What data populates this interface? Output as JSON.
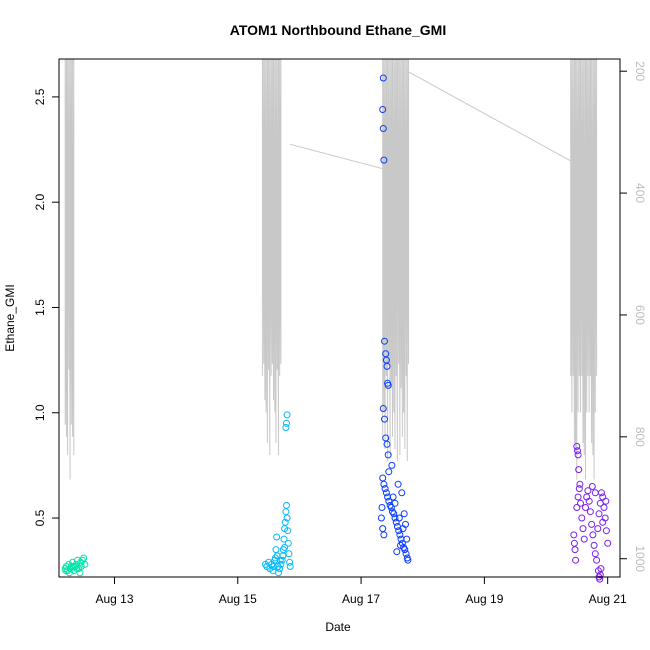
{
  "chart_data": {
    "type": "scatter",
    "title": "ATOM1 Northbound Ethane_GMI",
    "xlabel": "Date",
    "ylabel": "Ethane_GMI",
    "x_ticks": [
      "Aug 13",
      "Aug 15",
      "Aug 17",
      "Aug 19",
      "Aug 21"
    ],
    "y_ticks": [
      "0.5",
      "1.0",
      "1.5",
      "2.0",
      "2.5"
    ],
    "y2_ticks": [
      "200",
      "400",
      "600",
      "800",
      "1000"
    ],
    "y2_reversed": true,
    "xlim_days": [
      12.1,
      21.2
    ],
    "ylim": [
      0.22,
      2.68
    ],
    "y2lim": [
      1030,
      180
    ],
    "grid": false,
    "colors": {
      "axis": "#000000",
      "right_axis": "#bdbdbd",
      "pressure_line": "#c8c8c8"
    },
    "series": [
      {
        "color": "#00e5a8",
        "points": [
          [
            12.2,
            0.26
          ],
          [
            12.22,
            0.27
          ],
          [
            12.24,
            0.25
          ],
          [
            12.26,
            0.28
          ],
          [
            12.28,
            0.26
          ],
          [
            12.3,
            0.27
          ],
          [
            12.32,
            0.29
          ],
          [
            12.34,
            0.25
          ],
          [
            12.36,
            0.27
          ],
          [
            12.38,
            0.28
          ],
          [
            12.4,
            0.3
          ],
          [
            12.42,
            0.26
          ],
          [
            12.44,
            0.24
          ],
          [
            12.46,
            0.27
          ],
          [
            12.48,
            0.3
          ],
          [
            12.5,
            0.31
          ],
          [
            12.52,
            0.28
          ],
          [
            12.21,
            0.25
          ],
          [
            12.27,
            0.24
          ],
          [
            12.33,
            0.27
          ],
          [
            12.39,
            0.26
          ],
          [
            12.45,
            0.29
          ]
        ]
      },
      {
        "color": "#00b9ff",
        "points": [
          [
            15.45,
            0.28
          ],
          [
            15.47,
            0.27
          ],
          [
            15.5,
            0.29
          ],
          [
            15.52,
            0.26
          ],
          [
            15.55,
            0.28
          ],
          [
            15.57,
            0.25
          ],
          [
            15.6,
            0.3
          ],
          [
            15.62,
            0.35
          ],
          [
            15.63,
            0.41
          ],
          [
            15.64,
            0.32
          ],
          [
            15.65,
            0.27
          ],
          [
            15.66,
            0.24
          ],
          [
            15.68,
            0.26
          ],
          [
            15.7,
            0.28
          ],
          [
            15.72,
            0.3
          ],
          [
            15.74,
            0.35
          ],
          [
            15.75,
            0.4
          ],
          [
            15.76,
            0.45
          ],
          [
            15.77,
            0.48
          ],
          [
            15.78,
            0.53
          ],
          [
            15.79,
            0.56
          ],
          [
            15.8,
            0.5
          ],
          [
            15.81,
            0.44
          ],
          [
            15.82,
            0.38
          ],
          [
            15.83,
            0.33
          ],
          [
            15.84,
            0.29
          ],
          [
            15.85,
            0.27
          ],
          [
            15.78,
            0.93
          ],
          [
            15.79,
            0.95
          ],
          [
            15.8,
            0.99
          ],
          [
            15.76,
            0.36
          ],
          [
            15.73,
            0.32
          ],
          [
            15.69,
            0.3
          ],
          [
            15.58,
            0.27
          ],
          [
            15.61,
            0.31
          ]
        ]
      },
      {
        "color": "#0a3cff",
        "points": [
          [
            17.36,
            2.59
          ],
          [
            17.35,
            2.44
          ],
          [
            17.36,
            2.35
          ],
          [
            17.37,
            2.2
          ],
          [
            17.38,
            1.34
          ],
          [
            17.4,
            1.28
          ],
          [
            17.41,
            1.25
          ],
          [
            17.42,
            1.22
          ],
          [
            17.43,
            1.14
          ],
          [
            17.44,
            1.13
          ],
          [
            17.36,
            1.02
          ],
          [
            17.38,
            0.97
          ],
          [
            17.4,
            0.88
          ],
          [
            17.42,
            0.85
          ],
          [
            17.44,
            0.8
          ],
          [
            17.35,
            0.69
          ],
          [
            17.37,
            0.66
          ],
          [
            17.39,
            0.64
          ],
          [
            17.41,
            0.62
          ],
          [
            17.43,
            0.6
          ],
          [
            17.45,
            0.58
          ],
          [
            17.47,
            0.56
          ],
          [
            17.49,
            0.55
          ],
          [
            17.51,
            0.53
          ],
          [
            17.53,
            0.52
          ],
          [
            17.55,
            0.5
          ],
          [
            17.57,
            0.48
          ],
          [
            17.59,
            0.46
          ],
          [
            17.61,
            0.44
          ],
          [
            17.63,
            0.42
          ],
          [
            17.65,
            0.4
          ],
          [
            17.67,
            0.38
          ],
          [
            17.69,
            0.36
          ],
          [
            17.71,
            0.35
          ],
          [
            17.73,
            0.33
          ],
          [
            17.75,
            0.31
          ],
          [
            17.76,
            0.3
          ],
          [
            17.34,
            0.55
          ],
          [
            17.33,
            0.5
          ],
          [
            17.35,
            0.45
          ],
          [
            17.37,
            0.42
          ],
          [
            17.52,
            0.6
          ],
          [
            17.6,
            0.66
          ],
          [
            17.66,
            0.62
          ],
          [
            17.7,
            0.52
          ],
          [
            17.72,
            0.47
          ],
          [
            17.5,
            0.75
          ],
          [
            17.45,
            0.72
          ],
          [
            17.55,
            0.57
          ],
          [
            17.62,
            0.5
          ],
          [
            17.68,
            0.45
          ],
          [
            17.74,
            0.4
          ],
          [
            17.58,
            0.34
          ],
          [
            17.64,
            0.37
          ]
        ]
      },
      {
        "color": "#7a1ff0",
        "points": [
          [
            20.45,
            0.42
          ],
          [
            20.46,
            0.38
          ],
          [
            20.47,
            0.35
          ],
          [
            20.48,
            0.3
          ],
          [
            20.5,
            0.55
          ],
          [
            20.52,
            0.6
          ],
          [
            20.54,
            0.64
          ],
          [
            20.56,
            0.57
          ],
          [
            20.58,
            0.5
          ],
          [
            20.6,
            0.45
          ],
          [
            20.62,
            0.4
          ],
          [
            20.64,
            0.55
          ],
          [
            20.66,
            0.6
          ],
          [
            20.68,
            0.63
          ],
          [
            20.7,
            0.58
          ],
          [
            20.72,
            0.53
          ],
          [
            20.74,
            0.47
          ],
          [
            20.76,
            0.42
          ],
          [
            20.78,
            0.37
          ],
          [
            20.8,
            0.33
          ],
          [
            20.82,
            0.3
          ],
          [
            20.84,
            0.45
          ],
          [
            20.86,
            0.52
          ],
          [
            20.88,
            0.57
          ],
          [
            20.9,
            0.62
          ],
          [
            20.92,
            0.6
          ],
          [
            20.94,
            0.55
          ],
          [
            20.96,
            0.5
          ],
          [
            20.98,
            0.44
          ],
          [
            21.0,
            0.38
          ],
          [
            20.5,
            0.84
          ],
          [
            20.51,
            0.82
          ],
          [
            20.52,
            0.8
          ],
          [
            20.53,
            0.73
          ],
          [
            20.55,
            0.66
          ],
          [
            20.85,
            0.25
          ],
          [
            20.86,
            0.22
          ],
          [
            20.87,
            0.21
          ],
          [
            20.88,
            0.23
          ],
          [
            20.89,
            0.26
          ],
          [
            20.75,
            0.65
          ],
          [
            20.8,
            0.62
          ],
          [
            20.92,
            0.48
          ],
          [
            20.97,
            0.58
          ]
        ]
      }
    ]
  }
}
